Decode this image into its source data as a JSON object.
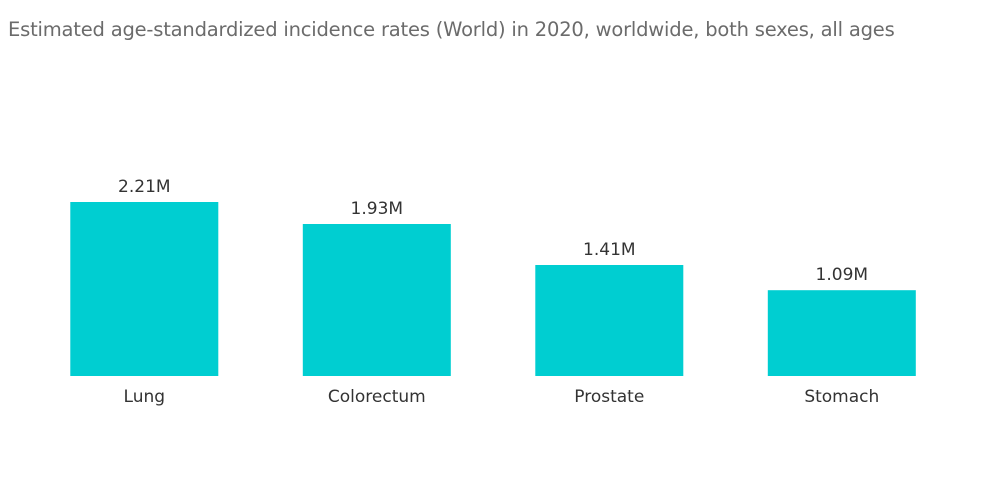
{
  "chart_data": {
    "type": "bar",
    "title": "Estimated age-standardized incidence rates (World) in 2020, worldwide, both sexes, all ages",
    "categories": [
      "Lung",
      "Colorectum",
      "Prostate",
      "Stomach"
    ],
    "values": [
      2.21,
      1.93,
      1.41,
      1.09
    ],
    "data_labels": [
      "2.21M",
      "1.93M",
      "1.41M",
      "1.09M"
    ],
    "ylim": [
      0,
      2.21
    ],
    "grid": false,
    "legend": "none",
    "bar_color": "#00CED1"
  }
}
